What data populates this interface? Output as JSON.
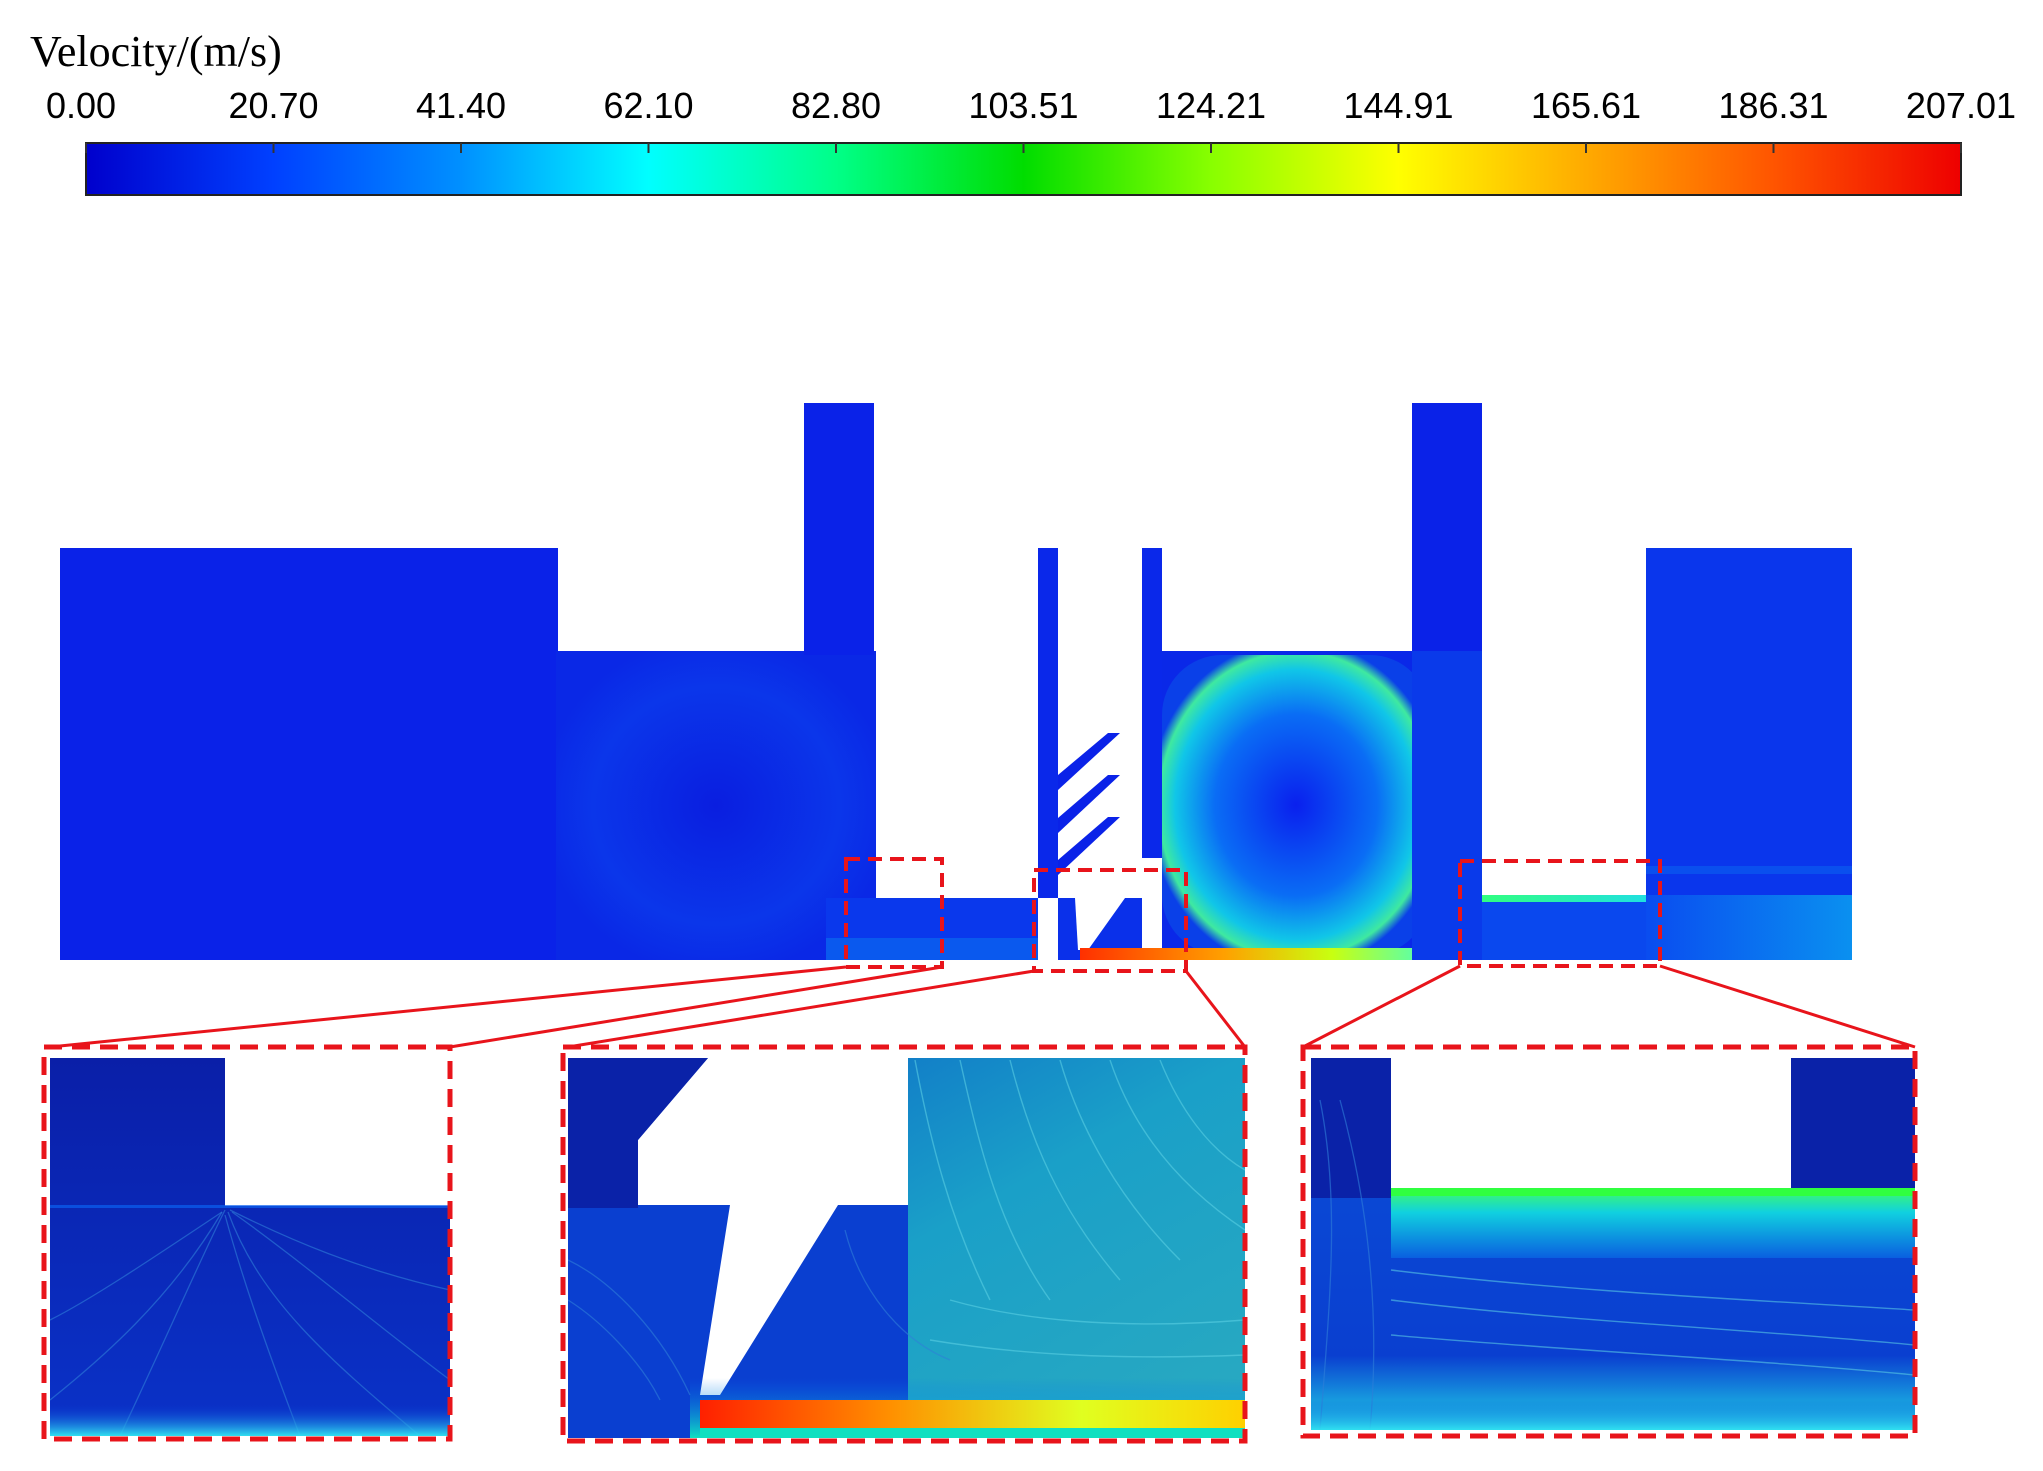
{
  "legend": {
    "title": "Velocity/(m/s)",
    "ticks": [
      "0.00",
      "20.70",
      "41.40",
      "62.10",
      "82.80",
      "103.51",
      "124.21",
      "144.91",
      "165.61",
      "186.31",
      "207.01"
    ],
    "min": 0.0,
    "max": 207.01,
    "colors": [
      "#0000cc",
      "#0044ff",
      "#0099ff",
      "#00ffff",
      "#00ff88",
      "#00dd00",
      "#88ff00",
      "#ffff00",
      "#ffaa00",
      "#ff5500",
      "#ee0000"
    ]
  },
  "zoom_insets": [
    "left-step",
    "nozzle-throat",
    "right-step"
  ],
  "colors": {
    "background_flow": "#0a24e6",
    "highlight_box": "#e8141b"
  }
}
